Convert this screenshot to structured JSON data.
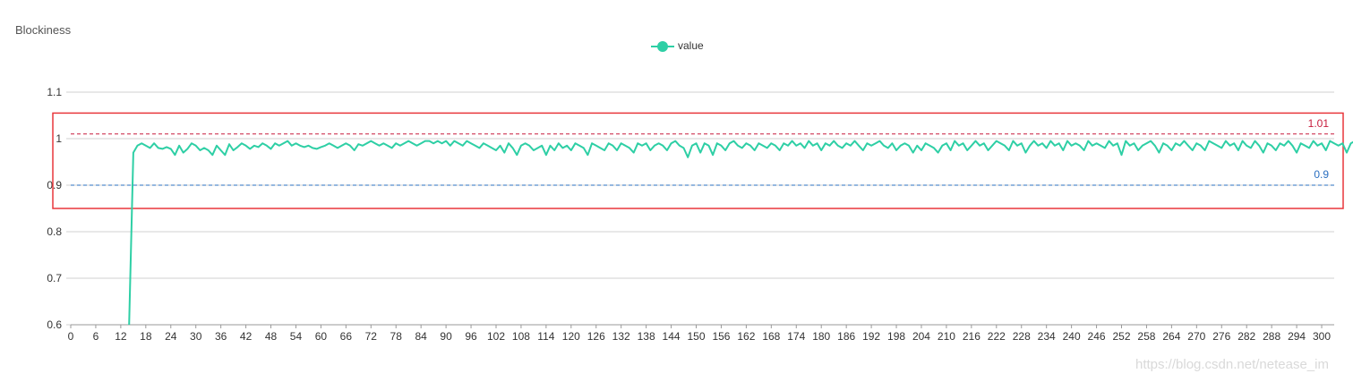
{
  "chart_data": {
    "type": "line",
    "title": "Blockiness",
    "xlabel": "",
    "ylabel": "",
    "legend": {
      "position": "top-center",
      "entries": [
        "value"
      ]
    },
    "x_range": [
      0,
      303
    ],
    "ylim": [
      0.6,
      1.1
    ],
    "y_ticks": [
      "0.6",
      "0.7",
      "0.8",
      "0.9",
      "1",
      "1.1"
    ],
    "x_ticks": [
      0,
      6,
      12,
      18,
      24,
      30,
      36,
      42,
      48,
      54,
      60,
      66,
      72,
      78,
      84,
      90,
      96,
      102,
      108,
      114,
      120,
      126,
      132,
      138,
      144,
      150,
      156,
      162,
      168,
      174,
      180,
      186,
      192,
      198,
      204,
      210,
      216,
      222,
      228,
      234,
      240,
      246,
      252,
      258,
      264,
      270,
      276,
      282,
      288,
      294,
      300
    ],
    "grid": "horizontal",
    "series": [
      {
        "name": "value",
        "color": "#2ecfa5",
        "x_start": 14,
        "values": [
          0.6,
          0.97,
          0.985,
          0.99,
          0.985,
          0.98,
          0.99,
          0.98,
          0.978,
          0.982,
          0.978,
          0.965,
          0.985,
          0.97,
          0.978,
          0.99,
          0.985,
          0.975,
          0.98,
          0.975,
          0.965,
          0.985,
          0.975,
          0.965,
          0.988,
          0.975,
          0.982,
          0.99,
          0.985,
          0.978,
          0.985,
          0.982,
          0.99,
          0.985,
          0.978,
          0.99,
          0.985,
          0.99,
          0.995,
          0.985,
          0.99,
          0.985,
          0.982,
          0.985,
          0.98,
          0.978,
          0.982,
          0.985,
          0.99,
          0.985,
          0.98,
          0.985,
          0.99,
          0.985,
          0.975,
          0.988,
          0.985,
          0.99,
          0.995,
          0.99,
          0.985,
          0.99,
          0.985,
          0.98,
          0.99,
          0.985,
          0.99,
          0.995,
          0.99,
          0.985,
          0.99,
          0.995,
          0.995,
          0.99,
          0.995,
          0.99,
          0.995,
          0.985,
          0.995,
          0.99,
          0.985,
          0.995,
          0.99,
          0.985,
          0.98,
          0.99,
          0.985,
          0.98,
          0.975,
          0.985,
          0.97,
          0.99,
          0.98,
          0.965,
          0.985,
          0.99,
          0.985,
          0.975,
          0.98,
          0.985,
          0.965,
          0.985,
          0.975,
          0.99,
          0.98,
          0.985,
          0.975,
          0.99,
          0.985,
          0.98,
          0.965,
          0.99,
          0.985,
          0.98,
          0.975,
          0.99,
          0.985,
          0.975,
          0.99,
          0.985,
          0.98,
          0.97,
          0.99,
          0.985,
          0.99,
          0.975,
          0.985,
          0.99,
          0.985,
          0.975,
          0.99,
          0.995,
          0.985,
          0.98,
          0.96,
          0.985,
          0.99,
          0.97,
          0.99,
          0.985,
          0.965,
          0.99,
          0.985,
          0.975,
          0.99,
          0.995,
          0.985,
          0.98,
          0.99,
          0.985,
          0.975,
          0.99,
          0.985,
          0.98,
          0.99,
          0.985,
          0.975,
          0.99,
          0.985,
          0.995,
          0.985,
          0.99,
          0.98,
          0.995,
          0.985,
          0.99,
          0.975,
          0.99,
          0.985,
          0.995,
          0.985,
          0.98,
          0.99,
          0.985,
          0.995,
          0.985,
          0.975,
          0.99,
          0.985,
          0.99,
          0.995,
          0.985,
          0.98,
          0.99,
          0.975,
          0.985,
          0.99,
          0.985,
          0.97,
          0.985,
          0.975,
          0.99,
          0.985,
          0.98,
          0.97,
          0.985,
          0.99,
          0.975,
          0.995,
          0.985,
          0.99,
          0.975,
          0.985,
          0.995,
          0.985,
          0.99,
          0.975,
          0.985,
          0.995,
          0.99,
          0.985,
          0.975,
          0.995,
          0.985,
          0.99,
          0.97,
          0.985,
          0.995,
          0.985,
          0.99,
          0.98,
          0.995,
          0.985,
          0.99,
          0.975,
          0.995,
          0.985,
          0.99,
          0.985,
          0.975,
          0.995,
          0.985,
          0.99,
          0.985,
          0.98,
          0.995,
          0.985,
          0.99,
          0.965,
          0.995,
          0.985,
          0.99,
          0.975,
          0.985,
          0.99,
          0.995,
          0.985,
          0.97,
          0.99,
          0.985,
          0.975,
          0.99,
          0.985,
          0.995,
          0.985,
          0.975,
          0.99,
          0.985,
          0.975,
          0.995,
          0.99,
          0.985,
          0.98,
          0.995,
          0.985,
          0.99,
          0.975,
          0.995,
          0.985,
          0.98,
          0.995,
          0.985,
          0.97,
          0.99,
          0.985,
          0.975,
          0.99,
          0.985,
          0.995,
          0.985,
          0.97,
          0.99,
          0.985,
          0.98,
          0.995,
          0.985,
          0.99,
          0.975,
          0.995,
          0.99,
          0.985,
          0.99,
          0.97,
          0.99,
          0.995,
          0.985,
          0.98,
          0.975
        ]
      }
    ],
    "reference_lines": [
      {
        "value": 1.01,
        "label": "1.01",
        "color": "#c71c3d",
        "style": "dashed"
      },
      {
        "value": 0.9,
        "label": "0.9",
        "color": "#2a6fc0",
        "style": "dashed"
      }
    ],
    "highlight_box": {
      "color": "#e8363b",
      "y_range": [
        0.85,
        1.055
      ]
    }
  },
  "watermark": "https://blog.csdn.net/netease_im"
}
